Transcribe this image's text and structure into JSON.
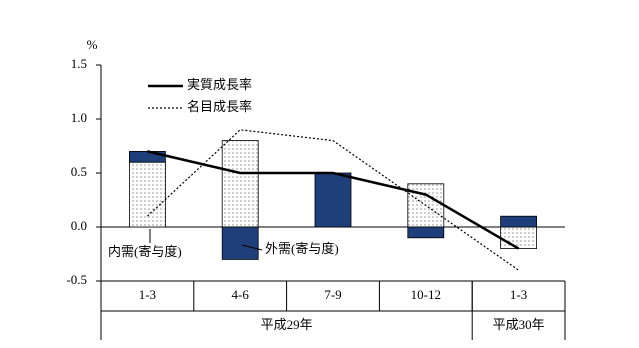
{
  "chart_data": {
    "type": "bar",
    "unit": "%",
    "categories": [
      "1-3",
      "4-6",
      "7-9",
      "10-12",
      "1-3"
    ],
    "groups": [
      {
        "label": "平成29年",
        "span": 4
      },
      {
        "label": "平成30年",
        "span": 1
      }
    ],
    "series": [
      {
        "name": "内需(寄与度)",
        "kind": "bar",
        "color": "#ffffff",
        "pattern": "dots",
        "values": [
          0.6,
          0.8,
          0.0,
          0.4,
          -0.2
        ]
      },
      {
        "name": "外需(寄与度)",
        "kind": "bar",
        "color": "#1f3f7a",
        "values": [
          0.1,
          -0.3,
          0.5,
          -0.1,
          0.1
        ]
      },
      {
        "name": "実質成長率",
        "kind": "line",
        "color": "#000000",
        "dash": "solid",
        "values": [
          0.7,
          0.5,
          0.5,
          0.3,
          -0.2
        ]
      },
      {
        "name": "名目成長率",
        "kind": "line",
        "color": "#000000",
        "dash": "dotted",
        "values": [
          0.1,
          0.9,
          0.8,
          0.2,
          -0.4
        ]
      }
    ],
    "ylim": [
      -0.5,
      1.5
    ],
    "yticks": [
      -0.5,
      {
        "value": 0,
        "label": "0.0"
      },
      0.5,
      {
        "value": 1,
        "label": "1.0"
      },
      1.5
    ],
    "legend": "top-left"
  }
}
